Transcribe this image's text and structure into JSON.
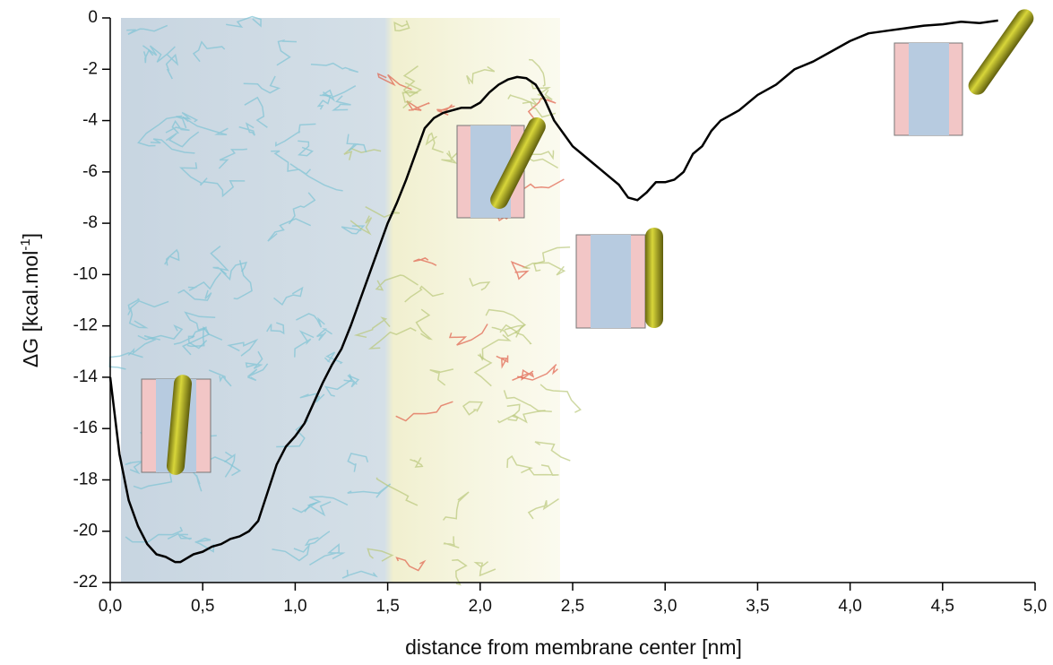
{
  "chart_data": {
    "type": "line",
    "x_label": "distance from membrane center [nm]",
    "y_label": {
      "text": "ΔG [kcal.mol",
      "superscript": "-1",
      "suffix": "]"
    },
    "xlim": [
      0,
      5
    ],
    "ylim": [
      -22,
      0
    ],
    "xticks": [
      {
        "value": 0,
        "label": "0,0"
      },
      {
        "value": 0.5,
        "label": "0,5"
      },
      {
        "value": 1,
        "label": "1,0"
      },
      {
        "value": 1.5,
        "label": "1,5"
      },
      {
        "value": 2,
        "label": "2,0"
      },
      {
        "value": 2.5,
        "label": "2,5"
      },
      {
        "value": 3,
        "label": "3,0"
      },
      {
        "value": 3.5,
        "label": "3,5"
      },
      {
        "value": 4,
        "label": "4,0"
      },
      {
        "value": 4.5,
        "label": "4,5"
      },
      {
        "value": 5,
        "label": "5,0"
      }
    ],
    "yticks": [
      0,
      -2,
      -4,
      -6,
      -8,
      -10,
      -12,
      -14,
      -16,
      -18,
      -20,
      -22
    ],
    "series": [
      {
        "color": "#000000",
        "x": [
          0,
          0.05,
          0.1,
          0.15,
          0.2,
          0.25,
          0.3,
          0.35,
          0.38,
          0.45,
          0.5,
          0.55,
          0.6,
          0.65,
          0.7,
          0.75,
          0.8,
          0.85,
          0.9,
          0.95,
          1.0,
          1.05,
          1.1,
          1.15,
          1.2,
          1.25,
          1.3,
          1.35,
          1.4,
          1.45,
          1.5,
          1.55,
          1.6,
          1.65,
          1.7,
          1.75,
          1.8,
          1.85,
          1.9,
          1.95,
          2.0,
          2.05,
          2.1,
          2.15,
          2.2,
          2.25,
          2.3,
          2.35,
          2.4,
          2.45,
          2.5,
          2.55,
          2.6,
          2.65,
          2.7,
          2.75,
          2.8,
          2.85,
          2.9,
          2.95,
          3.0,
          3.05,
          3.1,
          3.15,
          3.2,
          3.25,
          3.3,
          3.4,
          3.5,
          3.6,
          3.7,
          3.8,
          3.9,
          4.0,
          4.1,
          4.2,
          4.3,
          4.4,
          4.5,
          4.6,
          4.7,
          4.8
        ],
        "values": [
          -14.0,
          -17.0,
          -18.8,
          -19.8,
          -20.5,
          -20.9,
          -21.0,
          -21.2,
          -21.2,
          -20.9,
          -20.8,
          -20.6,
          -20.5,
          -20.3,
          -20.2,
          -20.0,
          -19.6,
          -18.5,
          -17.4,
          -16.7,
          -16.3,
          -15.8,
          -15.0,
          -14.2,
          -13.5,
          -12.9,
          -12.0,
          -11.0,
          -10.0,
          -9.0,
          -8.0,
          -7.2,
          -6.3,
          -5.3,
          -4.3,
          -3.9,
          -3.7,
          -3.6,
          -3.5,
          -3.5,
          -3.3,
          -2.9,
          -2.6,
          -2.4,
          -2.3,
          -2.35,
          -2.6,
          -3.2,
          -4.0,
          -4.5,
          -5.0,
          -5.3,
          -5.6,
          -5.9,
          -6.2,
          -6.5,
          -7.0,
          -7.1,
          -6.8,
          -6.4,
          -6.4,
          -6.3,
          -6.0,
          -5.3,
          -5.0,
          -4.4,
          -4.0,
          -3.6,
          -3.0,
          -2.6,
          -2.0,
          -1.7,
          -1.3,
          -0.9,
          -0.6,
          -0.5,
          -0.4,
          -0.3,
          -0.25,
          -0.15,
          -0.2,
          -0.1
        ]
      }
    ]
  }
}
